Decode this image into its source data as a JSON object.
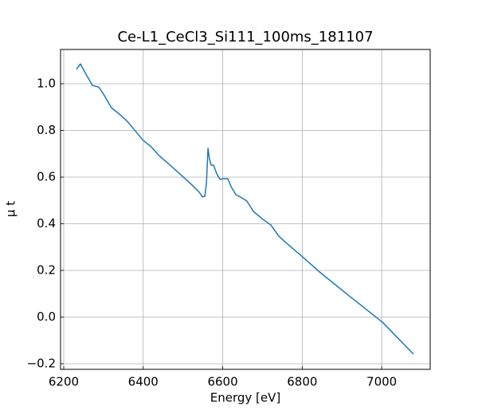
{
  "chart_data": {
    "type": "line",
    "title": "Ce-L1_CeCl3_Si111_100ms_181107",
    "x_label": "Energy [eV]",
    "y_label": "μ t",
    "x": [
      6232,
      6242,
      6256,
      6272,
      6288,
      6300,
      6320,
      6340,
      6360,
      6380,
      6400,
      6420,
      6440,
      6481,
      6521,
      6541,
      6549,
      6555,
      6559,
      6563,
      6567,
      6571,
      6577,
      6585,
      6593,
      6601,
      6613,
      6621,
      6633,
      6651,
      6661,
      6677,
      6701,
      6721,
      6741,
      6761,
      6801,
      6841,
      6921,
      7002,
      7080
    ],
    "series": [
      {
        "name": "μ t",
        "color": "#1f77b4",
        "values": [
          1.062,
          1.085,
          1.041,
          0.993,
          0.986,
          0.956,
          0.897,
          0.87,
          0.839,
          0.798,
          0.757,
          0.73,
          0.692,
          0.631,
          0.569,
          0.535,
          0.515,
          0.518,
          0.573,
          0.723,
          0.675,
          0.651,
          0.651,
          0.614,
          0.59,
          0.593,
          0.593,
          0.559,
          0.525,
          0.508,
          0.497,
          0.453,
          0.419,
          0.395,
          0.347,
          0.316,
          0.258,
          0.197,
          0.087,
          -0.022,
          -0.159
        ]
      }
    ],
    "xlim": [
      6192,
      7122
    ],
    "xticks": [
      6200,
      6400,
      6600,
      6800,
      7000
    ],
    "ylim": [
      -0.224,
      1.147
    ],
    "yticks": [
      {
        "value": -0.2,
        "label": "−0.2"
      },
      {
        "value": 0,
        "label": "0.0"
      },
      0.2,
      0.4,
      0.6,
      0.8,
      {
        "value": 1,
        "label": "1.0"
      }
    ],
    "grid": true
  }
}
